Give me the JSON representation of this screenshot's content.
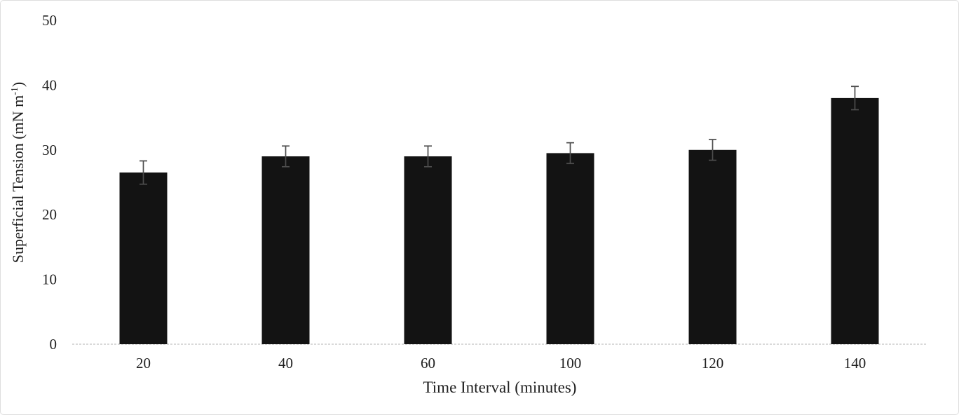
{
  "chart_data": {
    "type": "bar",
    "title": "",
    "xlabel": "Time Interval (minutes)",
    "ylabel": "Superficial Tension (mN m⁻¹)",
    "ylabel_parts": {
      "pre": "Superficial Tension (mN m",
      "sup": "-1",
      "post": ")"
    },
    "categories": [
      "20",
      "40",
      "60",
      "100",
      "120",
      "140"
    ],
    "values": [
      26.5,
      29,
      29,
      29.5,
      30,
      38
    ],
    "errors": [
      1.8,
      1.6,
      1.6,
      1.6,
      1.6,
      1.8
    ],
    "yticks": [
      0,
      10,
      20,
      30,
      40,
      50
    ],
    "ylim": [
      0,
      50
    ],
    "grid": "off",
    "legend": "none",
    "bar_color": "#131313",
    "error_bar_color": "#4d4d4d",
    "baseline_color": "#d9d9d9",
    "text_color": "#1f1f1f"
  }
}
